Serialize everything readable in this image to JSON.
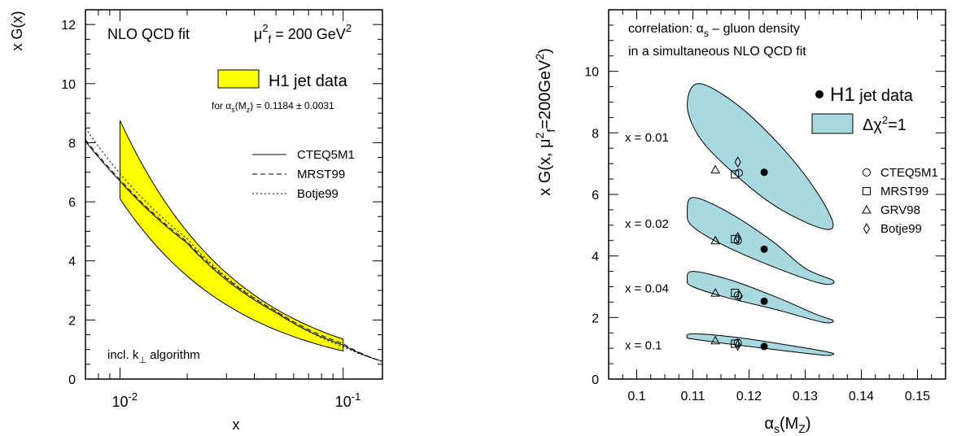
{
  "chart_data": [
    {
      "type": "line",
      "ylabel": "x G(x)",
      "xlabel": "x",
      "xscale": "log",
      "xlim": [
        0.007,
        0.15
      ],
      "ylim": [
        0,
        12.5
      ],
      "yticks": [
        0,
        2,
        4,
        6,
        8,
        10,
        12
      ],
      "xticks": [
        {
          "value": 0.01,
          "base": "10",
          "exp": "-2"
        },
        {
          "value": 0.1,
          "base": "10",
          "exp": "-1"
        }
      ],
      "header": {
        "fit": "NLO QCD fit",
        "scale_sym": "μ",
        "scale_sub": "f",
        "scale_sup": "2",
        "scale_eq": " = 200 GeV",
        "scale_unit_sup": "2"
      },
      "band": {
        "name": "H1 jet data",
        "color": "#ffff00",
        "x": [
          0.01,
          0.1
        ],
        "upper": [
          8.75,
          1.35
        ],
        "lower": [
          6.1,
          0.95
        ],
        "mid": [
          6.75,
          1.05
        ]
      },
      "alpha_note": {
        "pre": "for α",
        "sub1": "s",
        "mid": "(M",
        "sub2": "z",
        "post": ") = 0.1184 ± 0.0031"
      },
      "series": [
        {
          "name": "CTEQ5M1",
          "style": "solid",
          "x": [
            0.007,
            0.01,
            0.02,
            0.05,
            0.1,
            0.15
          ],
          "y": [
            8.05,
            6.7,
            4.6,
            2.25,
            1.15,
            0.6
          ]
        },
        {
          "name": "MRST99",
          "style": "dashed",
          "x": [
            0.007,
            0.01,
            0.02,
            0.05,
            0.1,
            0.15
          ],
          "y": [
            8.1,
            6.75,
            4.65,
            2.3,
            1.2,
            0.6
          ]
        },
        {
          "name": "Botje99",
          "style": "dotted",
          "x": [
            0.007,
            0.01,
            0.02,
            0.05,
            0.1,
            0.15
          ],
          "y": [
            8.5,
            6.95,
            4.75,
            2.3,
            1.1,
            0.6
          ]
        }
      ],
      "footnote": {
        "text": "incl. k",
        "sub": "⊥",
        "post": " algorithm"
      }
    },
    {
      "type": "scatter",
      "ylabel": "x G(x, μ",
      "ylabel_sub": "f",
      "ylabel_sup": "2",
      "ylabel_post": "=200GeV",
      "ylabel_sup2": "2",
      "ylabel_end": ")",
      "xlabel": "α",
      "xlabel_sub": "s",
      "xlabel_post": "(M",
      "xlabel_sub2": "Z",
      "xlabel_end": ")",
      "xlim": [
        0.095,
        0.155
      ],
      "ylim": [
        0,
        12
      ],
      "xticks": [
        "0.1",
        "0.11",
        "0.12",
        "0.13",
        "0.14",
        "0.15"
      ],
      "yticks": [
        "0",
        "2",
        "4",
        "6",
        "8",
        "10"
      ],
      "title_line1_pre": "correlation:   α",
      "title_line1_sub": "s",
      "title_line1_post": " – gluon density",
      "title_line2": "in a simultaneous NLO QCD fit",
      "legend": {
        "h1": "H1",
        "h1_suffix": " jet data",
        "ellipse": "Δχ",
        "ellipse_sup": "2",
        "ellipse_post": "=1",
        "ellipse_color": "#a8d8e0"
      },
      "models": [
        "CTEQ5M1",
        "MRST99",
        "GRV98",
        "Botje99"
      ],
      "groups": [
        {
          "label": "x = 0.01",
          "h1": [
            0.1227,
            6.72
          ],
          "CTEQ5M1": [
            0.1182,
            6.7
          ],
          "MRST99": [
            0.1175,
            6.65
          ],
          "GRV98": [
            0.114,
            6.8
          ],
          "Botje99": [
            0.118,
            7.05
          ],
          "ellipse": [
            [
              0.109,
              8.9
            ],
            [
              0.111,
              9.6
            ],
            [
              0.118,
              8.9
            ],
            [
              0.126,
              7.5
            ],
            [
              0.132,
              6.1
            ],
            [
              0.135,
              5.0
            ],
            [
              0.132,
              4.95
            ],
            [
              0.124,
              5.7
            ],
            [
              0.116,
              6.9
            ],
            [
              0.111,
              7.9
            ]
          ]
        },
        {
          "label": "x = 0.02",
          "h1": [
            0.1227,
            4.22
          ],
          "CTEQ5M1": [
            0.118,
            4.5
          ],
          "MRST99": [
            0.1175,
            4.55
          ],
          "GRV98": [
            0.114,
            4.5
          ],
          "Botje99": [
            0.118,
            4.6
          ],
          "ellipse": [
            [
              0.109,
              5.4
            ],
            [
              0.11,
              5.9
            ],
            [
              0.116,
              5.45
            ],
            [
              0.124,
              4.5
            ],
            [
              0.13,
              3.6
            ],
            [
              0.135,
              3.2
            ],
            [
              0.133,
              3.1
            ],
            [
              0.125,
              3.6
            ],
            [
              0.116,
              4.3
            ],
            [
              0.11,
              4.95
            ]
          ]
        },
        {
          "label": "x = 0.04",
          "h1": [
            0.1227,
            2.53
          ],
          "CTEQ5M1": [
            0.118,
            2.72
          ],
          "MRST99": [
            0.1175,
            2.8
          ],
          "GRV98": [
            0.114,
            2.8
          ],
          "Botje99": [
            0.1183,
            2.7
          ],
          "ellipse": [
            [
              0.109,
              3.2
            ],
            [
              0.11,
              3.5
            ],
            [
              0.117,
              3.2
            ],
            [
              0.125,
              2.65
            ],
            [
              0.132,
              2.1
            ],
            [
              0.135,
              1.9
            ],
            [
              0.133,
              1.85
            ],
            [
              0.125,
              2.25
            ],
            [
              0.116,
              2.65
            ],
            [
              0.11,
              3.0
            ]
          ]
        },
        {
          "label": "x = 0.1",
          "h1": [
            0.1227,
            1.06
          ],
          "CTEQ5M1": [
            0.118,
            1.18
          ],
          "MRST99": [
            0.1175,
            1.15
          ],
          "GRV98": [
            0.114,
            1.25
          ],
          "Botje99": [
            0.118,
            1.1
          ],
          "ellipse": [
            [
              0.109,
              1.35
            ],
            [
              0.11,
              1.47
            ],
            [
              0.118,
              1.35
            ],
            [
              0.127,
              1.1
            ],
            [
              0.134,
              0.88
            ],
            [
              0.135,
              0.8
            ],
            [
              0.133,
              0.78
            ],
            [
              0.125,
              0.95
            ],
            [
              0.116,
              1.15
            ],
            [
              0.11,
              1.3
            ]
          ]
        }
      ]
    }
  ]
}
